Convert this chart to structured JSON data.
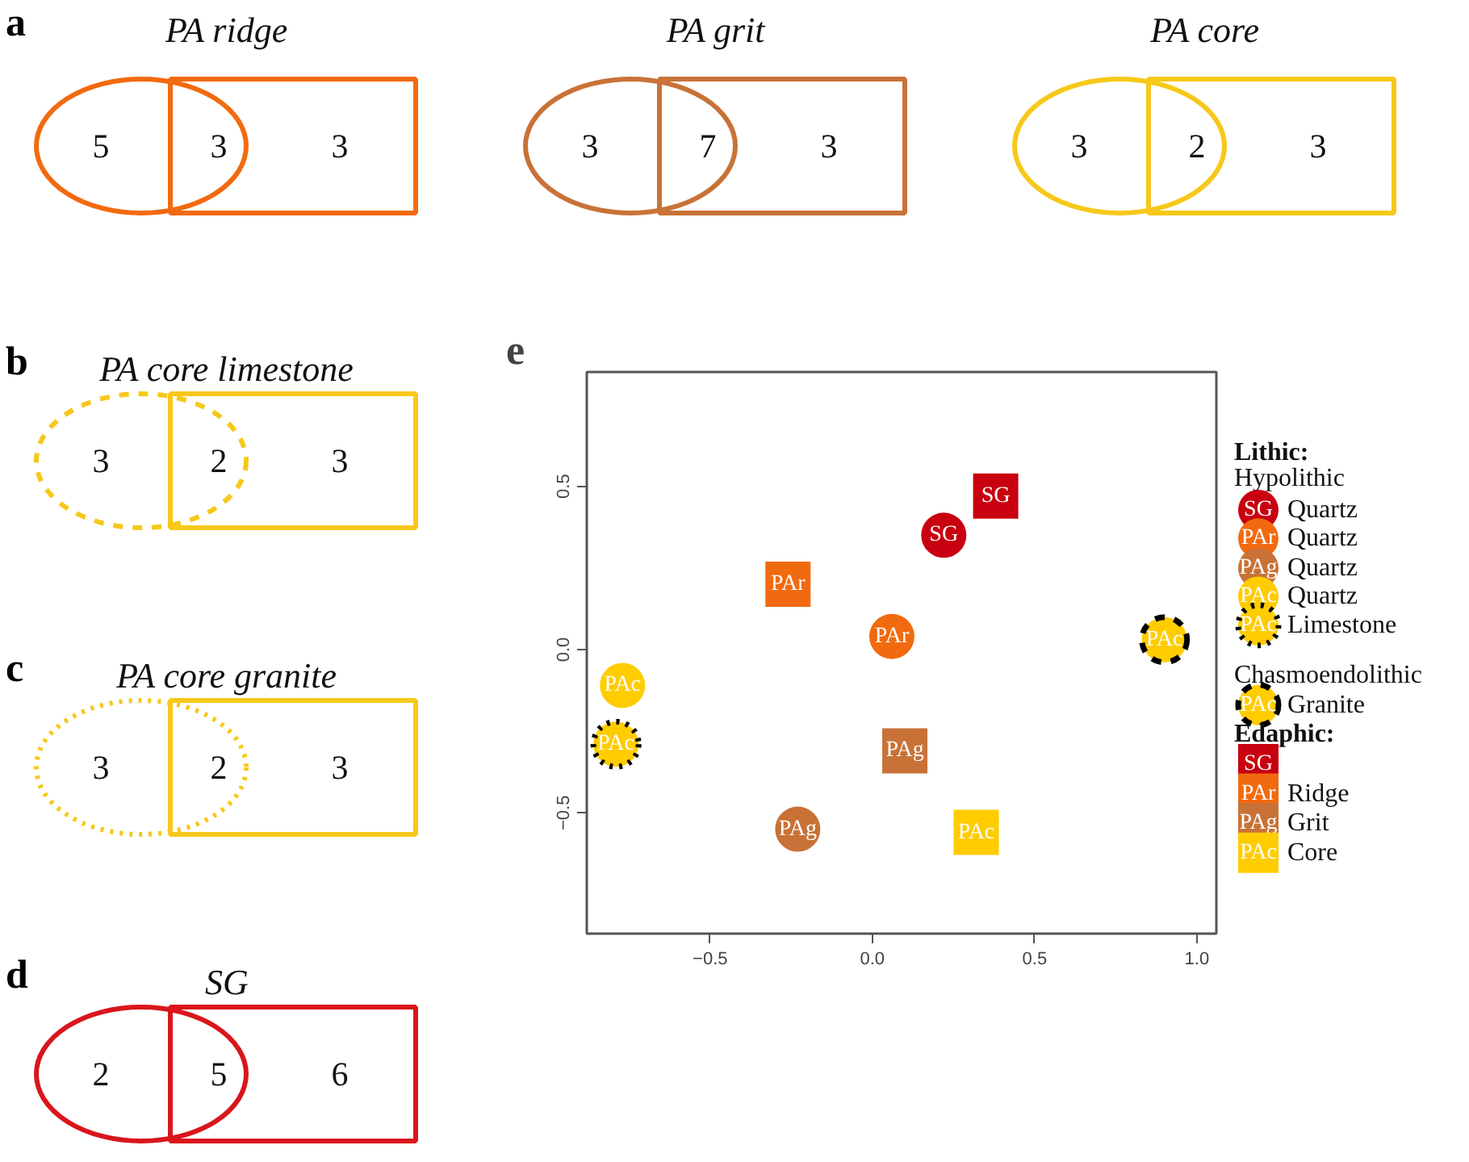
{
  "chart_data": [
    {
      "type": "other",
      "title": "PA ridge",
      "data_labels": true,
      "annotations": [
        "a"
      ],
      "series": [
        {
          "color": "#f26a0f",
          "line_style": "solid",
          "values": [
            5,
            3,
            3
          ]
        }
      ]
    },
    {
      "type": "other",
      "title": "PA grit",
      "data_labels": true,
      "series": [
        {
          "color": "#c87237",
          "line_style": "solid",
          "values": [
            3,
            7,
            3
          ]
        }
      ]
    },
    {
      "type": "other",
      "title": "PA core",
      "data_labels": true,
      "series": [
        {
          "color": "#f7c81a",
          "line_style": "solid",
          "values": [
            3,
            2,
            3
          ]
        }
      ]
    },
    {
      "type": "other",
      "title": "PA core limestone",
      "data_labels": true,
      "annotations": [
        "b"
      ],
      "series": [
        {
          "color": "#f7c81a",
          "line_style": "dashed",
          "values": [
            3,
            2,
            3
          ]
        }
      ]
    },
    {
      "type": "other",
      "title": "PA core granite",
      "data_labels": true,
      "annotations": [
        "c"
      ],
      "series": [
        {
          "color": "#f7c81a",
          "line_style": "dotted",
          "values": [
            3,
            2,
            3
          ]
        }
      ]
    },
    {
      "type": "other",
      "title": "SG",
      "data_labels": true,
      "annotations": [
        "d"
      ],
      "series": [
        {
          "color": "#d9161c",
          "line_style": "solid",
          "values": [
            2,
            5,
            6
          ]
        }
      ]
    },
    {
      "type": "scatter",
      "annotations": [
        "e",
        "Lithic:",
        "Hypolithic",
        "Chasmoendolithic",
        "Edaphic:"
      ],
      "xlim": [
        -0.88,
        1.06
      ],
      "ylim": [
        -0.87,
        0.85
      ],
      "xticks": [
        -0.5,
        {
          "value": 0,
          "label": "0.0"
        },
        0.5,
        {
          "value": 1,
          "label": "1.0"
        }
      ],
      "yticks": [
        -0.5,
        {
          "value": 0,
          "label": "0.0"
        },
        0.5
      ],
      "grid": false,
      "legend": "right",
      "series": [
        {
          "name": "Quartz",
          "color": "#c8000f",
          "marker": "circle",
          "x": [
            0.22
          ],
          "values": [
            0.35
          ],
          "value_labels": [
            "SG"
          ]
        },
        {
          "name": "Quartz",
          "color": "#f26a0f",
          "marker": "circle",
          "x": [
            0.06
          ],
          "values": [
            0.04
          ],
          "value_labels": [
            "PAr"
          ]
        },
        {
          "name": "Quartz",
          "color": "#c87237",
          "marker": "circle",
          "x": [
            -0.23
          ],
          "values": [
            -0.55
          ],
          "value_labels": [
            "PAg"
          ]
        },
        {
          "name": "Quartz",
          "color": "#ffcc00",
          "marker": "circle",
          "x": [
            -0.77
          ],
          "values": [
            -0.11
          ],
          "value_labels": [
            "PAc"
          ]
        },
        {
          "name": "Limestone",
          "color": "#ffcc00",
          "marker": "circle",
          "line_style": "dotted",
          "x": [
            -0.79
          ],
          "values": [
            -0.29
          ],
          "value_labels": [
            "PAc"
          ]
        },
        {
          "name": "Granite",
          "color": "#ffcc00",
          "marker": "circle",
          "line_style": "dashed",
          "x": [
            0.9
          ],
          "values": [
            0.03
          ],
          "value_labels": [
            "PAc"
          ]
        },
        {
          "color": "#c8000f",
          "marker": "square",
          "x": [
            0.38
          ],
          "values": [
            0.47
          ],
          "value_labels": [
            "SG"
          ]
        },
        {
          "name": "Ridge",
          "color": "#f26a0f",
          "marker": "square",
          "x": [
            -0.26
          ],
          "values": [
            0.2
          ],
          "value_labels": [
            "PAr"
          ]
        },
        {
          "name": "Grit",
          "color": "#c87237",
          "marker": "square",
          "x": [
            0.1
          ],
          "values": [
            -0.31
          ],
          "value_labels": [
            "PAg"
          ]
        },
        {
          "name": "Core",
          "color": "#ffcc00",
          "marker": "square",
          "x": [
            0.32
          ],
          "values": [
            -0.56
          ],
          "value_labels": [
            "PAc"
          ]
        }
      ]
    }
  ]
}
